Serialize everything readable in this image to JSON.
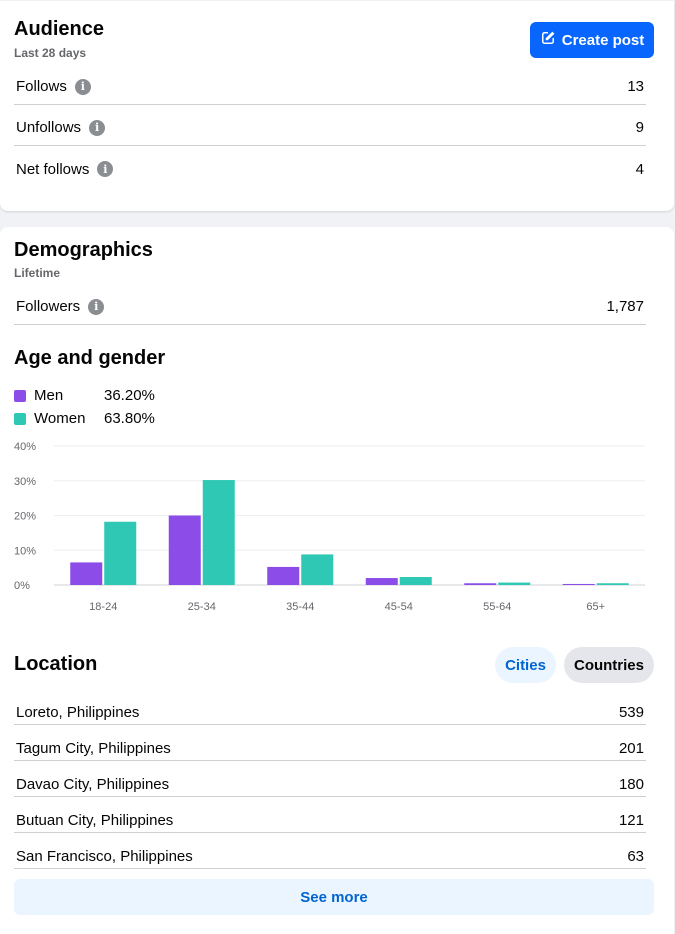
{
  "audience": {
    "title": "Audience",
    "subtitle": "Last 28 days",
    "create_post_label": "Create post",
    "rows": [
      {
        "label": "Follows",
        "value": "13"
      },
      {
        "label": "Unfollows",
        "value": "9"
      },
      {
        "label": "Net follows",
        "value": "4"
      }
    ]
  },
  "demographics": {
    "title": "Demographics",
    "subtitle": "Lifetime",
    "followers_label": "Followers",
    "followers_value": "1,787"
  },
  "age_gender": {
    "title": "Age and gender",
    "legend": [
      {
        "name": "Men",
        "percent": "36.20%",
        "color": "#8b4ce8"
      },
      {
        "name": "Women",
        "percent": "63.80%",
        "color": "#2ec8b4"
      }
    ]
  },
  "chart_data": {
    "type": "bar",
    "categories": [
      "18-24",
      "25-34",
      "35-44",
      "45-54",
      "55-64",
      "65+"
    ],
    "series": [
      {
        "name": "Men",
        "values": [
          6.5,
          20,
          5.2,
          2,
          0.5,
          0.3
        ],
        "color": "#8b4ce8"
      },
      {
        "name": "Women",
        "values": [
          18.2,
          30.2,
          8.8,
          2.3,
          0.7,
          0.5
        ],
        "color": "#2ec8b4"
      }
    ],
    "yticks": [
      "0%",
      "10%",
      "20%",
      "30%",
      "40%"
    ],
    "ylim": [
      0,
      40
    ]
  },
  "location": {
    "title": "Location",
    "tab_cities": "Cities",
    "tab_countries": "Countries",
    "rows": [
      {
        "name": "Loreto, Philippines",
        "value": "539"
      },
      {
        "name": "Tagum City, Philippines",
        "value": "201"
      },
      {
        "name": "Davao City, Philippines",
        "value": "180"
      },
      {
        "name": "Butuan City, Philippines",
        "value": "121"
      },
      {
        "name": "San Francisco, Philippines",
        "value": "63"
      }
    ],
    "see_more_label": "See more"
  },
  "icons": {
    "create_post": "edit-icon",
    "info": "info-icon"
  }
}
